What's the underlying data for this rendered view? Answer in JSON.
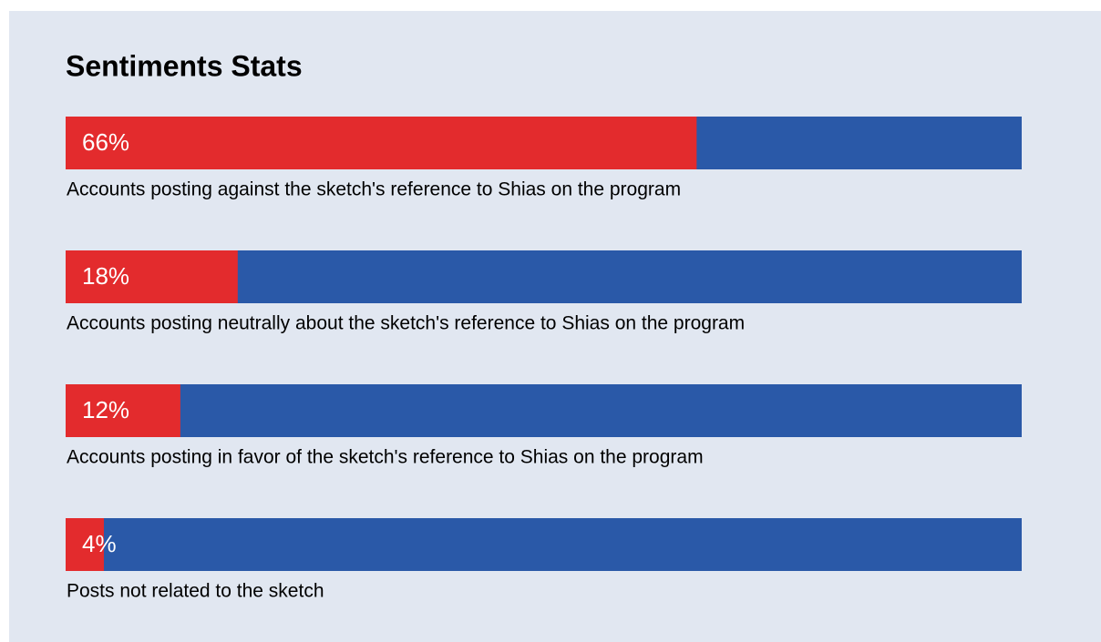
{
  "chart_data": {
    "type": "bar",
    "orientation": "horizontal",
    "title": "Sentiments Stats",
    "categories": [
      "Accounts posting against the sketch's reference to Shias on the program",
      "Accounts posting neutrally about the sketch's reference to Shias on the program",
      "Accounts posting in favor of the sketch's reference to Shias on the program",
      "Posts not related to the sketch"
    ],
    "values": [
      66,
      18,
      12,
      4
    ],
    "value_labels": [
      "66%",
      "18%",
      "12%",
      "4%"
    ],
    "color": "#e32b2d",
    "track_color": "#2a59a8",
    "background": "#e1e7f1",
    "xlim": [
      0,
      100
    ]
  }
}
